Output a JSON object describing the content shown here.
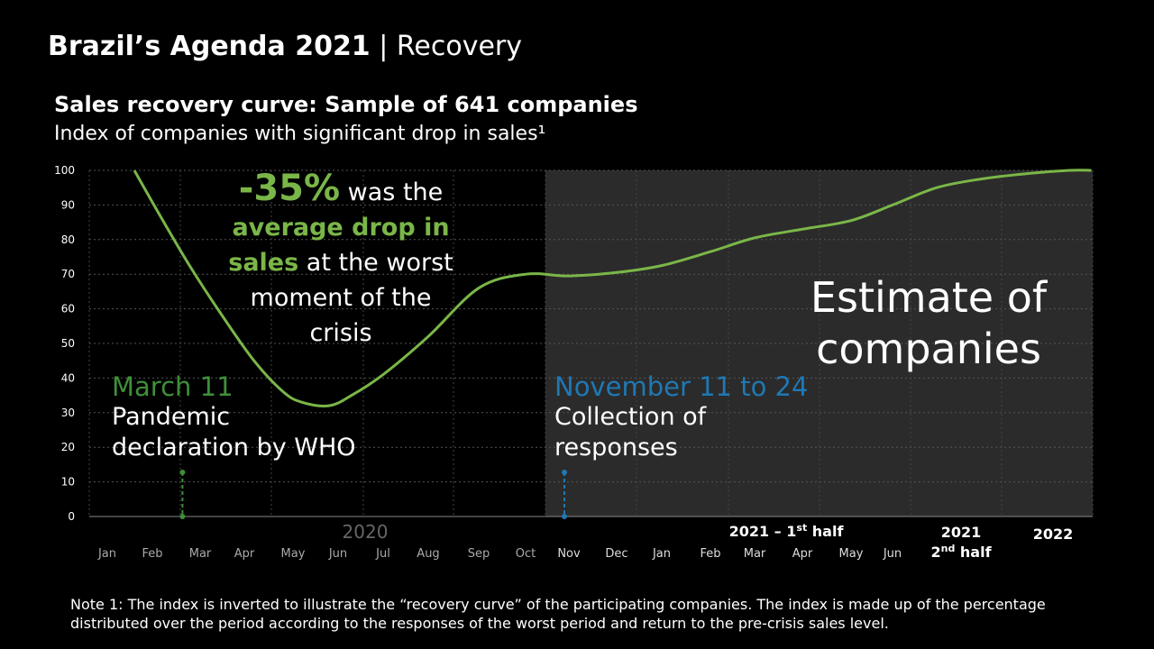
{
  "header": {
    "title_bold": "Brazil’s Agenda 2021",
    "title_sep": "|",
    "title_rest": "Recovery"
  },
  "chart_title": "Sales recovery curve: Sample of 641 companies",
  "chart_subtitle": "Index of companies with significant drop in sales¹",
  "chart_data": {
    "type": "line",
    "ylim": [
      0,
      100
    ],
    "yticks": [
      0,
      10,
      20,
      30,
      40,
      50,
      60,
      70,
      80,
      90,
      100
    ],
    "grid": true,
    "x_labels": [
      "Jan",
      "Feb",
      "Mar",
      "Apr",
      "May",
      "Jun",
      "Jul",
      "Aug",
      "Sep",
      "Oct",
      "Nov",
      "Dec",
      "Jan",
      "Feb",
      "Mar",
      "Apr",
      "May",
      "Jun"
    ],
    "x_group_labels": [
      "2020",
      "2021 – 1st half",
      "2021 2nd half",
      "2022"
    ],
    "series": [
      {
        "x": [
          0.6,
          1.2,
          1.8,
          2.5,
          3.2,
          3.8,
          4.2,
          4.8,
          5.3,
          6.0,
          7.0,
          8.0,
          9.0,
          10.0,
          11.0,
          12.0,
          13.0,
          14.0,
          15.0,
          16.0,
          17.0,
          18.0,
          19.0,
          20.0,
          21.0,
          21.5
        ],
        "y": [
          100,
          86,
          72,
          58,
          45,
          36,
          33,
          32,
          35,
          41,
          52,
          66,
          70,
          69.5,
          70.5,
          72.5,
          76.5,
          80.5,
          83,
          85.5,
          90,
          95,
          97.5,
          99,
          100,
          100
        ],
        "color": "#7ab648"
      }
    ],
    "shaded_region": {
      "from_index": 10,
      "label": "Estimate of companies"
    }
  },
  "callout": {
    "pct": "-35%",
    "line1_rest": " was the",
    "line2": "average drop in",
    "line3_green": "sales",
    "line3_rest": " at the worst",
    "line4": "moment of the",
    "line5": "crisis"
  },
  "annotation_march": {
    "head": "March 11",
    "line1": "Pandemic",
    "line2": "declaration by WHO"
  },
  "annotation_nov": {
    "head": "November 11 to 24",
    "line1": "Collection of",
    "line2": "responses"
  },
  "estimate": {
    "line1": "Estimate of",
    "line2": "companies"
  },
  "year_labels": {
    "y2020": "2020",
    "h1_main": "2021 – 1",
    "h1_sup": "st",
    "h1_tail": " half",
    "h2_line1": "2021",
    "h2_line2_num": "2",
    "h2_sup": "nd",
    "h2_tail": " half",
    "y2022": "2022"
  },
  "note": "Note 1: The index is inverted to illustrate the “recovery curve” of the participating companies. The index is made up of the percentage distributed over the period according to the responses of the worst period and return to the pre-crisis sales level.",
  "colors": {
    "line": "#7ab648",
    "march_marker": "#3f8f3a",
    "nov_marker": "#1f78b4",
    "shade": "#2b2b2b"
  }
}
